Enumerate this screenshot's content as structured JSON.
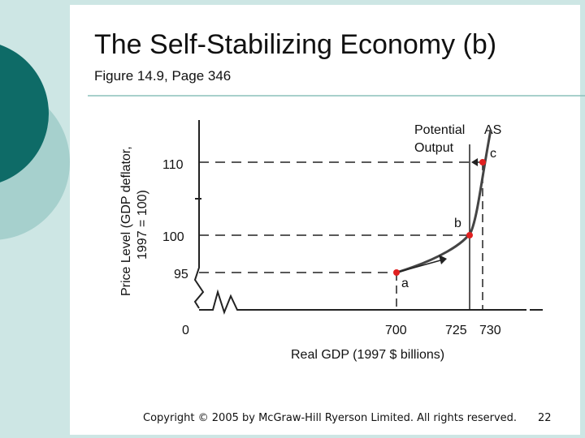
{
  "slide": {
    "title": "The Self-Stabilizing Economy (b)",
    "subtitle": "Figure 14.9, Page 346",
    "copyright": "Copyright © 2005 by McGraw-Hill Ryerson Limited. All rights reserved.",
    "page_number": "22",
    "colors": {
      "background": "#cde6e4",
      "dark_circle": "#0e6b67",
      "mid_circle": "#a6d0cd",
      "point": "#e02020"
    }
  },
  "chart_data": {
    "type": "line",
    "title": "",
    "xlabel": "Real GDP (1997 $ billions)",
    "ylabel": "Price Level (GDP deflator, 1997 = 100)",
    "ylabel_lines": [
      "Price Level (GDP deflator,",
      "1997 = 100)"
    ],
    "x_ticks": [
      "0",
      "700",
      "725",
      "730"
    ],
    "y_ticks": [
      "95",
      "100",
      "110"
    ],
    "x_values": [
      700,
      725,
      730
    ],
    "y_values": [
      95,
      100,
      110
    ],
    "axis_breaks": true,
    "series": [
      {
        "name": "AS",
        "points": [
          {
            "x": 700,
            "y": 95,
            "label": "a"
          },
          {
            "x": 725,
            "y": 100,
            "label": "b"
          },
          {
            "x": 730,
            "y": 110,
            "label": "c"
          }
        ]
      }
    ],
    "annotations": {
      "potential_output_line1": "Potential",
      "potential_output_line2": "Output",
      "as_label": "AS"
    }
  }
}
